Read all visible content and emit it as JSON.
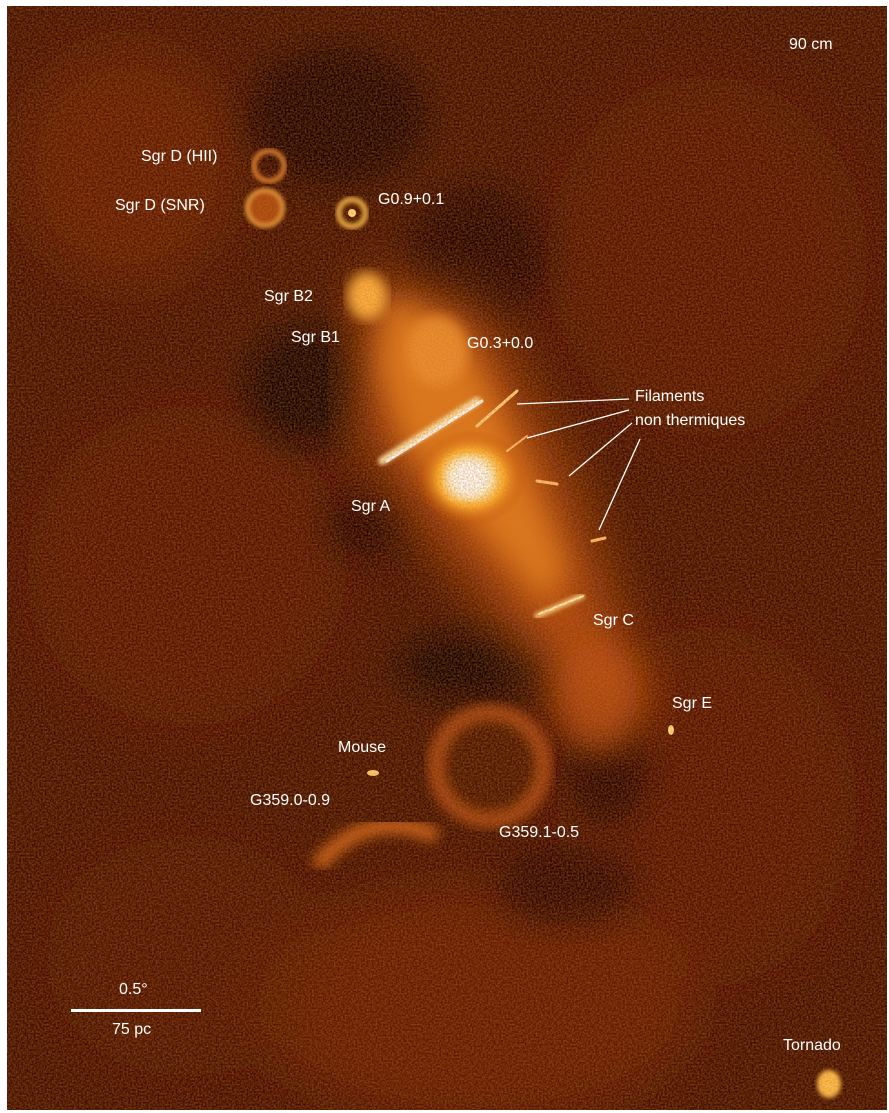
{
  "band_label": "90 cm",
  "labels": {
    "sgr_d_hii": "Sgr D (HII)",
    "sgr_d_snr": "Sgr D (SNR)",
    "g09": "G0.9+0.1",
    "sgr_b2": "Sgr B2",
    "sgr_b1": "Sgr B1",
    "g03": "G0.3+0.0",
    "filaments_line1": "Filaments",
    "filaments_line2": "non thermiques",
    "sgr_a": "Sgr A",
    "sgr_c": "Sgr C",
    "sgr_e": "Sgr E",
    "mouse": "Mouse",
    "g3590": "G359.0-0.9",
    "g3591": "G359.1-0.5",
    "tornado": "Tornado"
  },
  "scale": {
    "angle": "0.5°",
    "distance": "75 pc"
  },
  "colors": {
    "background": "#3d0d00",
    "mid": "#8a2a00",
    "bright": "#ffb030",
    "core": "#fffbe0",
    "text": "#ffffff"
  }
}
